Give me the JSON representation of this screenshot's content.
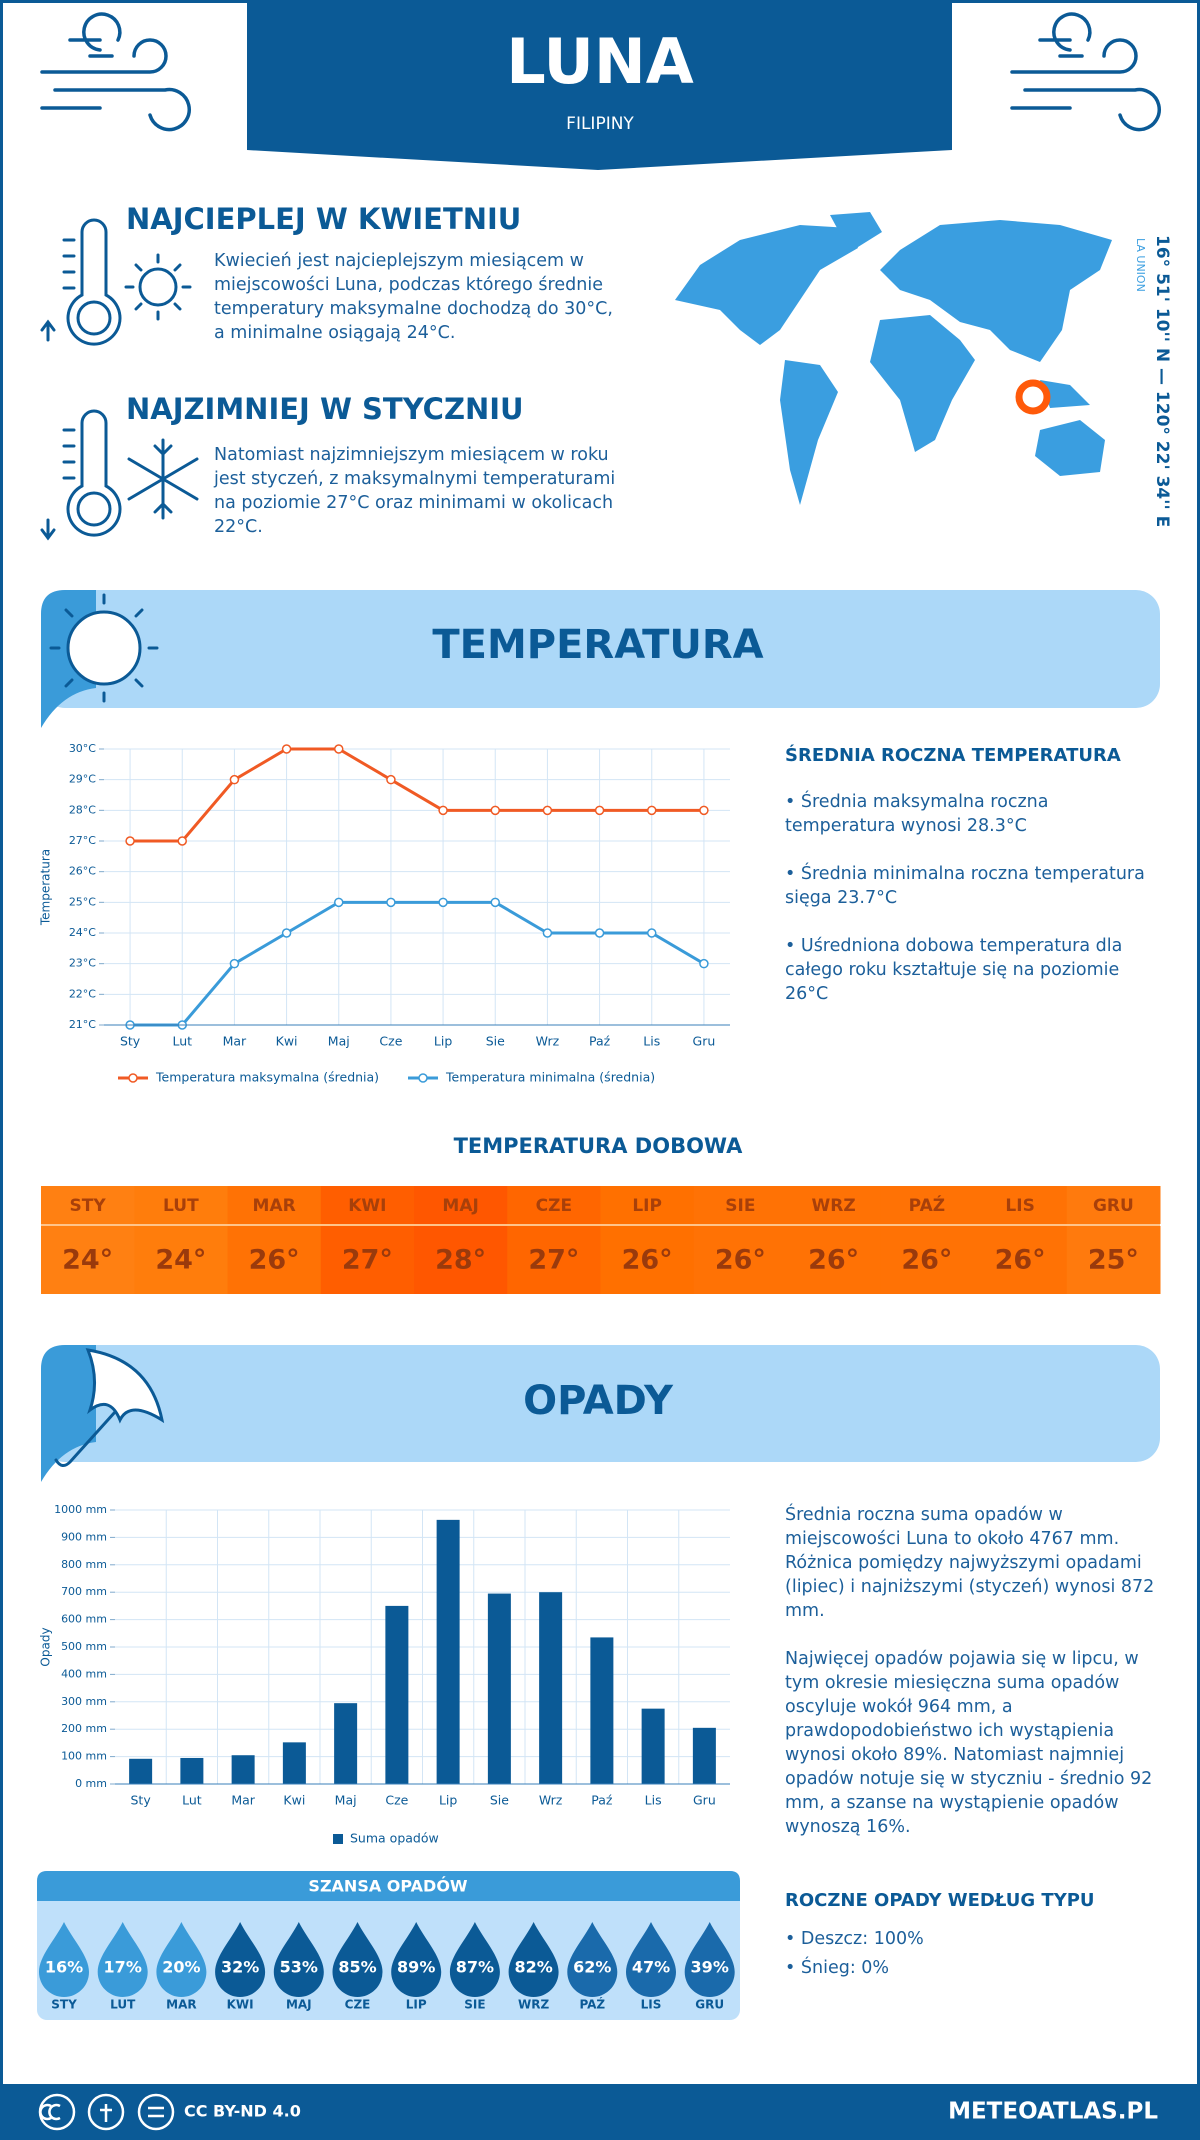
{
  "header": {
    "title": "LUNA",
    "subtitle": "FILIPINY"
  },
  "location": {
    "coordinates": "16° 51' 10'' N — 120° 22' 34'' E",
    "region": "LA UNION"
  },
  "warmest": {
    "title": "NAJCIEPLEJ W KWIETNIU",
    "text": "Kwiecień jest najcieplejszym miesiącem w miejscowości Luna, podczas którego średnie temperatury maksymalne dochodzą do 30°C, a minimalne osiągają 24°C."
  },
  "coldest": {
    "title": "NAJZIMNIEJ W STYCZNIU",
    "text": "Natomiast najzimniejszym miesiącem w roku jest styczeń, z maksymalnymi temperaturami na poziomie 27°C oraz minimami w okolicach 22°C."
  },
  "temperature_section": {
    "title": "TEMPERATURA",
    "summary_title": "ŚREDNIA ROCZNA TEMPERATURA",
    "bullets": [
      "• Średnia maksymalna roczna temperatura wynosi 28.3°C",
      "• Średnia minimalna roczna temperatura sięga 23.7°C",
      "• Uśredniona dobowa temperatura dla całego roku kształtuje się na poziomie 26°C"
    ]
  },
  "chart_data": [
    {
      "type": "line",
      "y_label": "Temperatura",
      "categories": [
        "Sty",
        "Lut",
        "Mar",
        "Kwi",
        "Maj",
        "Cze",
        "Lip",
        "Sie",
        "Wrz",
        "Paź",
        "Lis",
        "Gru"
      ],
      "series": [
        {
          "name": "Temperatura maksymalna (średnia)",
          "color": "#f05a24",
          "values": [
            27,
            27,
            29,
            30,
            30,
            29,
            28,
            28,
            28,
            28,
            28,
            28
          ]
        },
        {
          "name": "Temperatura minimalna (średnia)",
          "color": "#3a9bd9",
          "values": [
            21,
            21,
            23,
            24,
            25,
            25,
            25,
            25,
            24,
            24,
            24,
            23
          ]
        }
      ],
      "ylim": [
        21,
        30
      ],
      "yticks": [
        {
          "value": 21,
          "label": "21°C"
        },
        {
          "value": 22,
          "label": "22°C"
        },
        {
          "value": 23,
          "label": "23°C"
        },
        {
          "value": 24,
          "label": "24°C"
        },
        {
          "value": 25,
          "label": "25°C"
        },
        {
          "value": 26,
          "label": "26°C"
        },
        {
          "value": 27,
          "label": "27°C"
        },
        {
          "value": 28,
          "label": "28°C"
        },
        {
          "value": 29,
          "label": "29°C"
        },
        {
          "value": 30,
          "label": "30°C"
        }
      ],
      "grid": true
    },
    {
      "type": "bar",
      "y_label": "Opady",
      "categories": [
        "Sty",
        "Lut",
        "Mar",
        "Kwi",
        "Maj",
        "Cze",
        "Lip",
        "Sie",
        "Wrz",
        "Paź",
        "Lis",
        "Gru"
      ],
      "series": [
        {
          "name": "Suma opadów",
          "color": "#0b5a96",
          "values": [
            92,
            95,
            105,
            152,
            295,
            650,
            964,
            695,
            700,
            535,
            275,
            205
          ]
        }
      ],
      "ylim": [
        0,
        1000
      ],
      "yticks": [
        {
          "value": 0,
          "label": "0 mm"
        },
        {
          "value": 100,
          "label": "100 mm"
        },
        {
          "value": 200,
          "label": "200 mm"
        },
        {
          "value": 300,
          "label": "300 mm"
        },
        {
          "value": 400,
          "label": "400 mm"
        },
        {
          "value": 500,
          "label": "500 mm"
        },
        {
          "value": 600,
          "label": "600 mm"
        },
        {
          "value": 700,
          "label": "700 mm"
        },
        {
          "value": 800,
          "label": "800 mm"
        },
        {
          "value": 900,
          "label": "900 mm"
        },
        {
          "value": 1000,
          "label": "1000 mm"
        }
      ],
      "grid": true
    }
  ],
  "daily_temperature": {
    "title": "TEMPERATURA DOBOWA",
    "months": [
      "STY",
      "LUT",
      "MAR",
      "KWI",
      "MAJ",
      "CZE",
      "LIP",
      "SIE",
      "WRZ",
      "PAŹ",
      "LIS",
      "GRU"
    ],
    "values": [
      "24°",
      "24°",
      "26°",
      "27°",
      "28°",
      "27°",
      "26°",
      "26°",
      "26°",
      "26°",
      "26°",
      "25°"
    ]
  },
  "precipitation_section": {
    "title": "OPADY",
    "paragraphs": [
      "Średnia roczna suma opadów w miejscowości Luna to około 4767 mm. Różnica pomiędzy najwyższymi opadami (lipiec) i najniższymi (styczeń) wynosi 872 mm.",
      "Najwięcej opadów pojawia się w lipcu, w tym okresie miesięczna suma opadów oscyluje wokół 964 mm, a prawdopodobieństwo ich wystąpienia wynosi około 89%. Natomiast najmniej opadów notuje się w styczniu - średnio 92 mm, a szanse na wystąpienie opadów wynoszą 16%."
    ],
    "chance_title": "SZANSA OPADÓW",
    "chance": [
      "16%",
      "17%",
      "20%",
      "32%",
      "53%",
      "85%",
      "89%",
      "87%",
      "82%",
      "62%",
      "47%",
      "39%"
    ],
    "type_title": "ROCZNE OPADY WEDŁUG TYPU",
    "types": [
      "• Deszcz: 100%",
      "• Śnieg: 0%"
    ]
  },
  "footer": {
    "license": "CC BY-ND 4.0",
    "site": "METEOATLAS.PL"
  }
}
